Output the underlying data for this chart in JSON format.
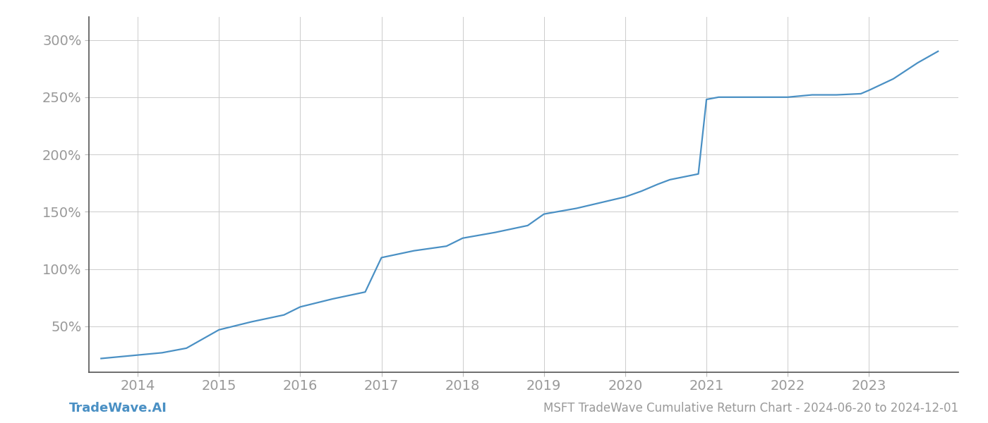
{
  "title": "MSFT TradeWave Cumulative Return Chart - 2024-06-20 to 2024-12-01",
  "watermark": "TradeWave.AI",
  "line_color": "#4a90c4",
  "background_color": "#ffffff",
  "grid_color": "#cccccc",
  "x_years": [
    2013.55,
    2014.0,
    2014.3,
    2014.6,
    2015.0,
    2015.4,
    2015.8,
    2016.0,
    2016.4,
    2016.8,
    2017.0,
    2017.4,
    2017.8,
    2018.0,
    2018.4,
    2018.8,
    2019.0,
    2019.4,
    2019.7,
    2020.0,
    2020.2,
    2020.4,
    2020.55,
    2020.9,
    2021.0,
    2021.15,
    2021.5,
    2021.8,
    2022.0,
    2022.3,
    2022.6,
    2022.9,
    2023.0,
    2023.3,
    2023.6,
    2023.85
  ],
  "y_values": [
    22,
    25,
    27,
    31,
    47,
    54,
    60,
    67,
    74,
    80,
    110,
    116,
    120,
    127,
    132,
    138,
    148,
    153,
    158,
    163,
    168,
    174,
    178,
    183,
    248,
    250,
    250,
    250,
    250,
    252,
    252,
    253,
    256,
    266,
    280,
    290
  ],
  "xlim": [
    2013.4,
    2024.1
  ],
  "ylim": [
    10,
    320
  ],
  "yticks": [
    50,
    100,
    150,
    200,
    250,
    300
  ],
  "xticks": [
    2014,
    2015,
    2016,
    2017,
    2018,
    2019,
    2020,
    2021,
    2022,
    2023
  ],
  "tick_label_color": "#999999",
  "axis_label_fontsize": 14,
  "title_fontsize": 12,
  "watermark_fontsize": 13,
  "line_width": 1.6
}
